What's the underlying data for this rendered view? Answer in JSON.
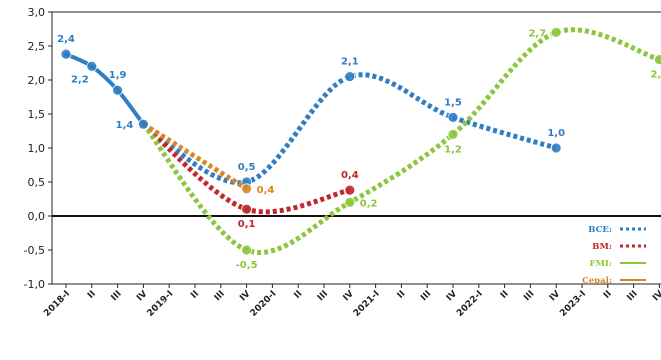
{
  "chart_data": {
    "type": "line",
    "categories": [
      "2018-I",
      "II",
      "III",
      "IV",
      "2019-I",
      "II",
      "III",
      "IV",
      "2020-I",
      "II",
      "III",
      "IV",
      "2021-I",
      "II",
      "III",
      "IV",
      "2022-I",
      "II",
      "III",
      "IV",
      "2023-I",
      "II",
      "III",
      "IV"
    ],
    "ylim": [
      -1.0,
      3.0
    ],
    "yticks": [
      "3,0",
      "2,5",
      "2,0",
      "1,5",
      "1,0",
      "0,5",
      "0,0",
      "-0,5",
      "-1,0"
    ],
    "grid": false,
    "legend_position": "bottom-right",
    "series": [
      {
        "name": "BCE:",
        "color": "#2e7ec4",
        "style": "dotted",
        "points": [
          [
            3,
            1.35
          ],
          [
            7,
            0.5
          ],
          [
            11,
            2.05
          ],
          [
            15,
            1.45
          ],
          [
            19,
            1.0
          ]
        ],
        "labels": [
          {
            "i": 7,
            "text": "0,5",
            "pos": "above"
          },
          {
            "i": 11,
            "text": "2,1",
            "pos": "above"
          },
          {
            "i": 15,
            "text": "1,5",
            "pos": "above"
          },
          {
            "i": 19,
            "text": "1,0",
            "pos": "above"
          }
        ]
      },
      {
        "name": "BM:",
        "color": "#c0262d",
        "style": "dotted",
        "points": [
          [
            3,
            1.35
          ],
          [
            7,
            0.1
          ],
          [
            11,
            0.38
          ]
        ],
        "labels": [
          {
            "i": 7,
            "text": "0,1",
            "pos": "below"
          },
          {
            "i": 11,
            "text": "0,4",
            "pos": "above"
          }
        ]
      },
      {
        "name": "FMI:",
        "color": "#8cc63f",
        "style": "dotted",
        "points": [
          [
            3,
            1.35
          ],
          [
            7,
            -0.5
          ],
          [
            11,
            0.2
          ],
          [
            15,
            1.2
          ],
          [
            19,
            2.7
          ],
          [
            23,
            2.3
          ]
        ],
        "labels": [
          {
            "i": 7,
            "text": "-0,5",
            "pos": "below"
          },
          {
            "i": 11,
            "text": "0,2",
            "pos": "right"
          },
          {
            "i": 15,
            "text": "1,2",
            "pos": "below"
          },
          {
            "i": 19,
            "text": "2,7",
            "pos": "left"
          },
          {
            "i": 23,
            "text": "2,3",
            "pos": "below"
          }
        ]
      },
      {
        "name": "Cepal:",
        "color": "#d8842a",
        "style": "dotted",
        "points": [
          [
            3,
            1.35
          ],
          [
            7,
            0.4
          ]
        ],
        "labels": [
          {
            "i": 7,
            "text": "0,4",
            "pos": "right"
          }
        ]
      },
      {
        "name": "",
        "color": "#2e7ec4",
        "style": "solid",
        "points": [
          [
            0,
            2.38
          ],
          [
            1,
            2.2
          ],
          [
            2,
            1.85
          ],
          [
            3,
            1.35
          ]
        ],
        "labels": [
          {
            "i": 0,
            "text": "2,4",
            "pos": "above"
          },
          {
            "i": 1,
            "text": "2,2",
            "pos": "below-left"
          },
          {
            "i": 2,
            "text": "1,9",
            "pos": "above"
          },
          {
            "i": 3,
            "text": "1,4",
            "pos": "left"
          }
        ]
      }
    ],
    "legend": [
      {
        "label": "BCE:",
        "color": "#2e7ec4",
        "style": "dotted"
      },
      {
        "label": "BM:",
        "color": "#c0262d",
        "style": "dotted"
      },
      {
        "label": "FMI:",
        "color": "#8cc63f",
        "style": "solid"
      },
      {
        "label": "Cepal:",
        "color": "#d8842a",
        "style": "solid"
      }
    ]
  }
}
